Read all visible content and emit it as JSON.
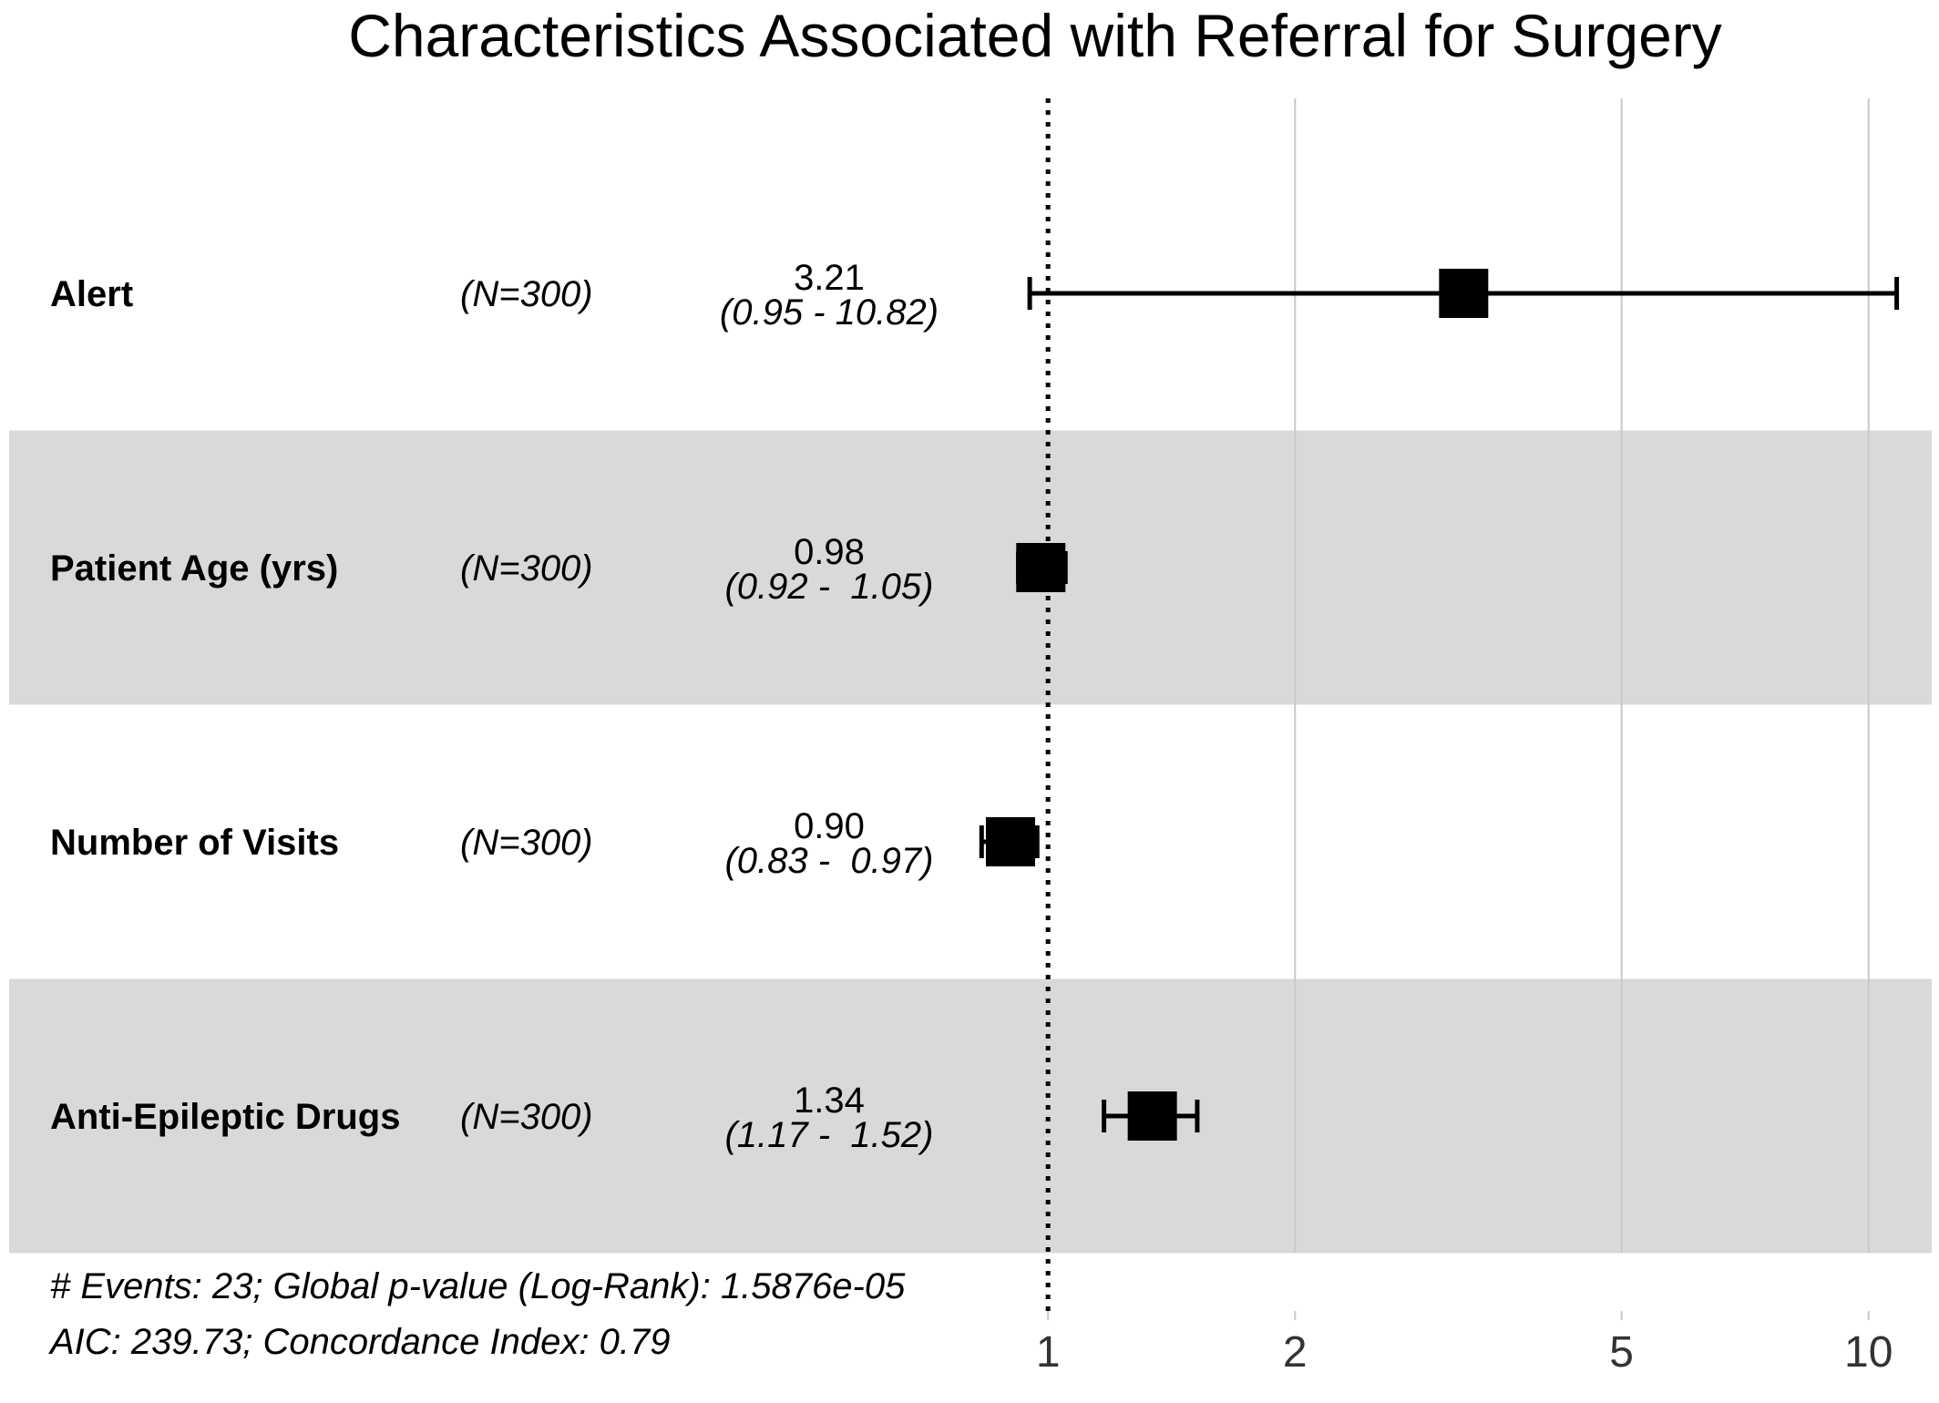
{
  "chart_data": {
    "type": "forest",
    "title": "Characteristics Associated with Referral for Surgery",
    "x_scale": "log",
    "xlim": [
      0.78,
      11.4
    ],
    "x_ticks": [
      1,
      2,
      5,
      10
    ],
    "x_tick_labels": [
      "1",
      "2",
      "5",
      "10"
    ],
    "reference_line": 1,
    "rows": [
      {
        "label": "Alert",
        "n": "(N=300)",
        "estimate": 3.21,
        "estimate_label": "3.21",
        "ci_low": 0.95,
        "ci_high": 10.82,
        "ci_label": "(0.95 - 10.82)",
        "shaded": false
      },
      {
        "label": "Patient Age (yrs)",
        "n": "(N=300)",
        "estimate": 0.98,
        "estimate_label": "0.98",
        "ci_low": 0.92,
        "ci_high": 1.05,
        "ci_label": "(0.92 -  1.05)",
        "shaded": true
      },
      {
        "label": "Number of Visits",
        "n": "(N=300)",
        "estimate": 0.9,
        "estimate_label": "0.90",
        "ci_low": 0.83,
        "ci_high": 0.97,
        "ci_label": "(0.83 -  0.97)",
        "shaded": false
      },
      {
        "label": "Anti-Epileptic Drugs",
        "n": "(N=300)",
        "estimate": 1.34,
        "estimate_label": "1.34",
        "ci_low": 1.17,
        "ci_high": 1.52,
        "ci_label": "(1.17 -  1.52)",
        "shaded": true
      }
    ],
    "footnotes": [
      "# Events: 23; Global p-value (Log-Rank): 1.5876e-05",
      "AIC: 239.73; Concordance Index: 0.79"
    ],
    "colors": {
      "shade": "#d9d9d9",
      "grid": "#c8c8c8",
      "marker": "#000000",
      "text": "#000000"
    }
  }
}
